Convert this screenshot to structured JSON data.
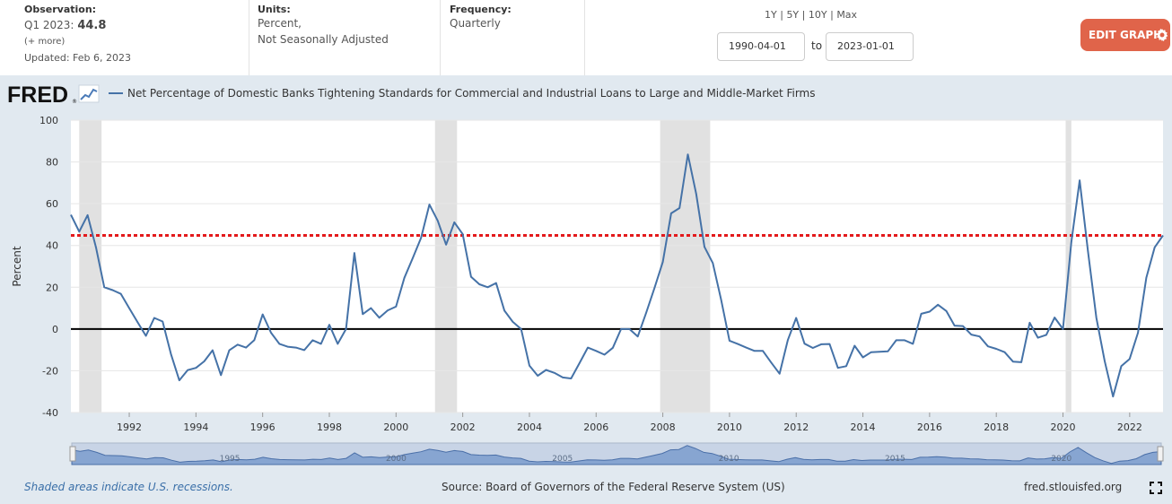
{
  "observation": {
    "label": "Observation:",
    "period": "Q1 2023:",
    "value": "44.8",
    "more": "(+ more)",
    "updated": "Updated: Feb 6, 2023"
  },
  "units": {
    "label": "Units:",
    "line1": "Percent,",
    "line2": "Not Seasonally Adjusted"
  },
  "frequency": {
    "label": "Frequency:",
    "value": "Quarterly"
  },
  "range": {
    "y1": "1Y",
    "y5": "5Y",
    "y10": "10Y",
    "max": "Max",
    "sep": "|",
    "start": "1990-04-01",
    "to": "to",
    "end": "2023-01-01"
  },
  "edit_button": "EDIT GRAPH",
  "logo": "FRED",
  "logo_mark": "®",
  "footer": {
    "recessions": "Shaded areas indicate U.S. recessions.",
    "source": "Source: Board of Governors of the Federal Reserve System (US)",
    "site": "fred.stlouisfed.org"
  },
  "chart_data": {
    "type": "line",
    "title": "Net Percentage of Domestic Banks Tightening Standards for Commercial and Industrial Loans to Large and Middle-Market Firms",
    "ylabel": "Percent",
    "xlabel": "",
    "ylim": [
      -40,
      100
    ],
    "yticks": [
      -40,
      -20,
      0,
      20,
      40,
      60,
      80,
      100
    ],
    "xticks": [
      1992,
      1994,
      1996,
      1998,
      2000,
      2002,
      2004,
      2006,
      2008,
      2010,
      2012,
      2014,
      2016,
      2018,
      2020,
      2022
    ],
    "xlim": [
      1990.25,
      2023.0
    ],
    "threshold": 44.8,
    "recessions": [
      [
        1990.5,
        1991.17
      ],
      [
        2001.17,
        2001.83
      ],
      [
        2007.92,
        2009.42
      ],
      [
        2020.08,
        2020.25
      ]
    ],
    "navigator_labels": [
      "1995",
      "2000",
      "2005",
      "2010",
      "2015",
      "2020"
    ],
    "series": [
      {
        "name": "Net Percentage of Domestic Banks Tightening Standards",
        "color": "#4572a7",
        "x": [
          1990.25,
          1990.5,
          1990.75,
          1991.0,
          1991.25,
          1991.5,
          1991.75,
          1992.0,
          1992.25,
          1992.5,
          1992.75,
          1993.0,
          1993.25,
          1993.5,
          1993.75,
          1994.0,
          1994.25,
          1994.5,
          1994.75,
          1995.0,
          1995.25,
          1995.5,
          1995.75,
          1996.0,
          1996.25,
          1996.5,
          1996.75,
          1997.0,
          1997.25,
          1997.5,
          1997.75,
          1998.0,
          1998.25,
          1998.5,
          1998.75,
          1999.0,
          1999.25,
          1999.5,
          1999.75,
          2000.0,
          2000.25,
          2000.5,
          2000.75,
          2001.0,
          2001.25,
          2001.5,
          2001.75,
          2002.0,
          2002.25,
          2002.5,
          2002.75,
          2003.0,
          2003.25,
          2003.5,
          2003.75,
          2004.0,
          2004.25,
          2004.5,
          2004.75,
          2005.0,
          2005.25,
          2005.5,
          2005.75,
          2006.0,
          2006.25,
          2006.5,
          2006.75,
          2007.0,
          2007.25,
          2007.5,
          2007.75,
          2008.0,
          2008.25,
          2008.5,
          2008.75,
          2009.0,
          2009.25,
          2009.5,
          2009.75,
          2010.0,
          2010.25,
          2010.5,
          2010.75,
          2011.0,
          2011.25,
          2011.5,
          2011.75,
          2012.0,
          2012.25,
          2012.5,
          2012.75,
          2013.0,
          2013.25,
          2013.5,
          2013.75,
          2014.0,
          2014.25,
          2014.5,
          2014.75,
          2015.0,
          2015.25,
          2015.5,
          2015.75,
          2016.0,
          2016.25,
          2016.5,
          2016.75,
          2017.0,
          2017.25,
          2017.5,
          2017.75,
          2018.0,
          2018.25,
          2018.5,
          2018.75,
          2019.0,
          2019.25,
          2019.5,
          2019.75,
          2020.0,
          2020.25,
          2020.5,
          2020.75,
          2021.0,
          2021.25,
          2021.5,
          2021.75,
          2022.0,
          2022.25,
          2022.5,
          2022.75,
          2023.0
        ],
        "values": [
          54.7,
          46.6,
          54.5,
          39.2,
          20.0,
          18.6,
          16.8,
          10.0,
          3.3,
          -3.3,
          5.3,
          3.6,
          -12.0,
          -24.6,
          -19.7,
          -18.6,
          -15.5,
          -10.2,
          -22.1,
          -10.2,
          -7.5,
          -8.9,
          -5.3,
          7.0,
          -1.8,
          -7.1,
          -8.5,
          -8.9,
          -10.1,
          -5.4,
          -7.1,
          2.0,
          -7.1,
          0.0,
          36.4,
          7.1,
          10.0,
          5.4,
          8.9,
          10.7,
          24.5,
          33.9,
          43.6,
          59.6,
          51.8,
          40.4,
          51.1,
          45.4,
          25.0,
          21.4,
          20.0,
          22.0,
          8.8,
          3.4,
          0.0,
          -17.6,
          -22.4,
          -19.6,
          -21.0,
          -23.2,
          -23.7,
          -16.4,
          -8.9,
          -10.5,
          -12.3,
          -9.0,
          0.0,
          0.0,
          -3.6,
          7.7,
          19.6,
          32.1,
          55.4,
          57.9,
          83.6,
          64.7,
          39.3,
          31.6,
          14.0,
          -5.6,
          -7.2,
          -8.9,
          -10.5,
          -10.5,
          -16.1,
          -21.4,
          -5.3,
          5.3,
          -7.0,
          -9.1,
          -7.3,
          -7.2,
          -18.6,
          -17.8,
          -8.0,
          -13.6,
          -11.1,
          -10.9,
          -10.7,
          -5.4,
          -5.4,
          -7.1,
          7.3,
          8.3,
          11.6,
          8.6,
          1.6,
          1.4,
          -2.7,
          -3.6,
          -8.3,
          -9.5,
          -11.1,
          -15.6,
          -15.9,
          3.0,
          -4.2,
          -2.8,
          5.5,
          0.0,
          41.5,
          71.2,
          37.1,
          5.4,
          -15.4,
          -32.3,
          -17.8,
          -14.3,
          -1.8,
          24.6,
          39.1,
          44.8
        ]
      }
    ]
  }
}
